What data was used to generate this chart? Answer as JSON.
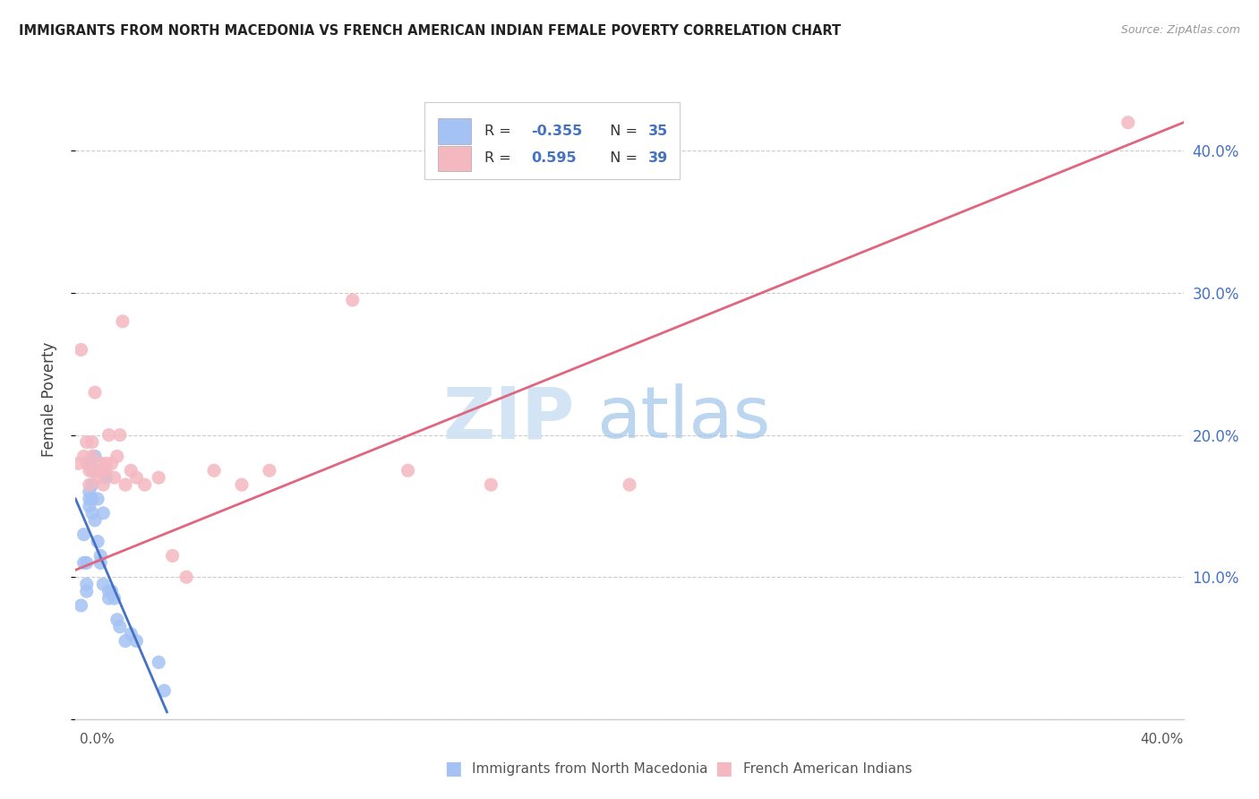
{
  "title": "IMMIGRANTS FROM NORTH MACEDONIA VS FRENCH AMERICAN INDIAN FEMALE POVERTY CORRELATION CHART",
  "source": "Source: ZipAtlas.com",
  "ylabel": "Female Poverty",
  "xlim": [
    0.0,
    0.4
  ],
  "ylim": [
    0.0,
    0.45
  ],
  "ytick_vals": [
    0.0,
    0.1,
    0.2,
    0.3,
    0.4
  ],
  "right_ytick_labels": [
    "10.0%",
    "20.0%",
    "30.0%",
    "40.0%"
  ],
  "right_ytick_vals": [
    0.1,
    0.2,
    0.3,
    0.4
  ],
  "legend_r1_label": "R = ",
  "legend_r1_val": "-0.355",
  "legend_n1_label": "N = ",
  "legend_n1_val": "35",
  "legend_r2_label": "R =  ",
  "legend_r2_val": "0.595",
  "legend_n2_label": "N = ",
  "legend_n2_val": "39",
  "blue_color": "#a4c2f4",
  "pink_color": "#f4b8c1",
  "blue_line_color": "#4472c4",
  "pink_line_color": "#e06680",
  "text_blue": "#4472c4",
  "text_dark": "#333333",
  "watermark_zip_color": "#cfe2f3",
  "watermark_atlas_color": "#9fc5e8",
  "blue_x": [
    0.002,
    0.003,
    0.003,
    0.004,
    0.004,
    0.004,
    0.005,
    0.005,
    0.005,
    0.005,
    0.006,
    0.006,
    0.006,
    0.006,
    0.007,
    0.007,
    0.007,
    0.008,
    0.008,
    0.009,
    0.009,
    0.01,
    0.01,
    0.011,
    0.012,
    0.012,
    0.013,
    0.014,
    0.015,
    0.016,
    0.018,
    0.02,
    0.022,
    0.03,
    0.032
  ],
  "blue_y": [
    0.08,
    0.13,
    0.11,
    0.11,
    0.095,
    0.09,
    0.18,
    0.16,
    0.155,
    0.15,
    0.175,
    0.165,
    0.155,
    0.145,
    0.185,
    0.175,
    0.14,
    0.155,
    0.125,
    0.115,
    0.11,
    0.145,
    0.095,
    0.17,
    0.09,
    0.085,
    0.09,
    0.085,
    0.07,
    0.065,
    0.055,
    0.06,
    0.055,
    0.04,
    0.02
  ],
  "pink_x": [
    0.001,
    0.002,
    0.003,
    0.004,
    0.004,
    0.005,
    0.005,
    0.006,
    0.006,
    0.007,
    0.007,
    0.008,
    0.008,
    0.009,
    0.01,
    0.01,
    0.011,
    0.011,
    0.012,
    0.013,
    0.014,
    0.015,
    0.016,
    0.017,
    0.018,
    0.02,
    0.022,
    0.025,
    0.03,
    0.035,
    0.04,
    0.05,
    0.06,
    0.07,
    0.1,
    0.12,
    0.15,
    0.2,
    0.38
  ],
  "pink_y": [
    0.18,
    0.26,
    0.185,
    0.195,
    0.18,
    0.175,
    0.165,
    0.195,
    0.185,
    0.23,
    0.175,
    0.17,
    0.175,
    0.18,
    0.175,
    0.165,
    0.18,
    0.175,
    0.2,
    0.18,
    0.17,
    0.185,
    0.2,
    0.28,
    0.165,
    0.175,
    0.17,
    0.165,
    0.17,
    0.115,
    0.1,
    0.175,
    0.165,
    0.175,
    0.295,
    0.175,
    0.165,
    0.165,
    0.42
  ],
  "blue_trend_x": [
    0.0,
    0.033
  ],
  "blue_trend_y": [
    0.155,
    0.005
  ],
  "pink_trend_x": [
    0.0,
    0.4
  ],
  "pink_trend_y": [
    0.105,
    0.42
  ]
}
